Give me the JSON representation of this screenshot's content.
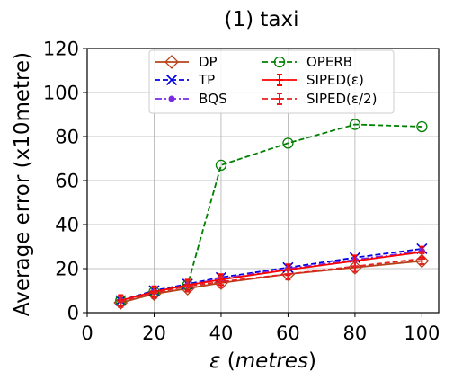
{
  "chart_data": {
    "type": "line",
    "title": "(1) taxi",
    "xlabel": "ε (metres)",
    "ylabel": "Average error (x10metre)",
    "xlim": [
      0,
      105
    ],
    "ylim": [
      0,
      120
    ],
    "xticks": [
      0,
      20,
      40,
      60,
      80,
      100
    ],
    "yticks": [
      0,
      20,
      40,
      60,
      80,
      100,
      120
    ],
    "grid": true,
    "legend_position": "top-center",
    "x": [
      10,
      20,
      30,
      40,
      60,
      80,
      100
    ],
    "series": [
      {
        "name": "DP",
        "color": "#b5441c",
        "dash": "solid",
        "marker": "diamond-open",
        "values": [
          4.5,
          8.5,
          11,
          13.5,
          17.5,
          20.5,
          23.5
        ]
      },
      {
        "name": "TP",
        "color": "#0000e6",
        "dash": "dashed",
        "marker": "x",
        "values": [
          5.5,
          10,
          13,
          16,
          20.5,
          25,
          29
        ]
      },
      {
        "name": "BQS",
        "color": "#7b2be2",
        "dash": "dashdot",
        "marker": "dot",
        "values": [
          5.5,
          9.5,
          12.5,
          15.5,
          20,
          24,
          28
        ]
      },
      {
        "name": "OPERB",
        "color": "#008000",
        "dash": "dashed",
        "marker": "circle-open",
        "values": [
          5.5,
          9.5,
          12.5,
          67,
          77,
          85.5,
          84.5
        ]
      },
      {
        "name": "SIPED(ε)",
        "color": "#ff0000",
        "dash": "solid",
        "marker": "plus-errorbar",
        "values": [
          5.5,
          9.5,
          12.5,
          15,
          19.5,
          23.5,
          27.5
        ]
      },
      {
        "name": "SIPED(ε/2)",
        "color": "#e62020",
        "dash": "dashed",
        "marker": "plus-errorbar",
        "values": [
          5,
          9,
          12,
          14,
          17.5,
          21,
          24.5
        ]
      }
    ]
  }
}
